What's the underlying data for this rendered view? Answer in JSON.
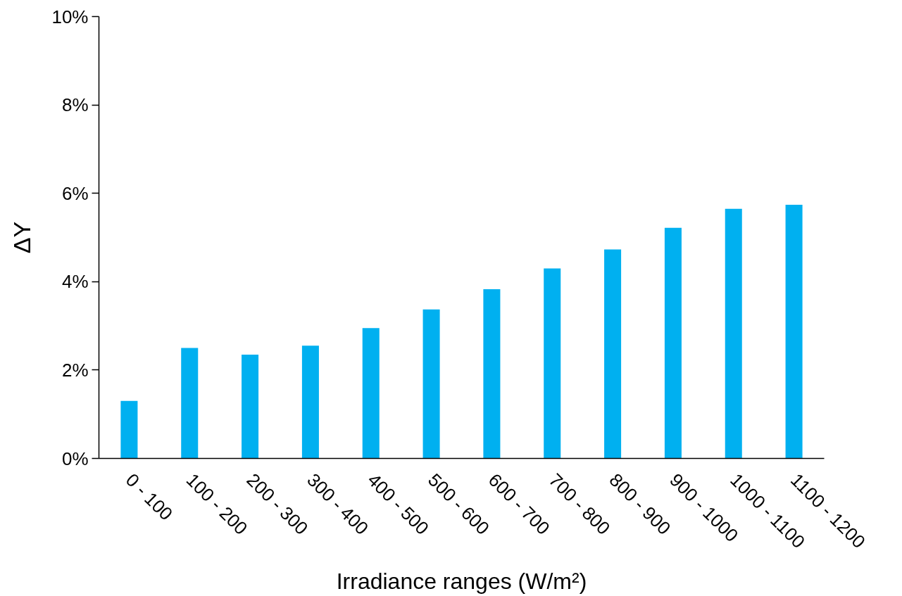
{
  "chart_data": {
    "type": "bar",
    "xlabel": "Irradiance ranges (W/m²)",
    "ylabel": "ΔY",
    "categories": [
      "0 - 100",
      "100 - 200",
      "200 - 300",
      "300 - 400",
      "400 - 500",
      "500 - 600",
      "600 - 700",
      "700 - 800",
      "800 - 900",
      "900 - 1000",
      "1000 - 1100",
      "1100 - 1200"
    ],
    "values": [
      1.3,
      2.5,
      2.35,
      2.55,
      2.95,
      3.37,
      3.83,
      4.3,
      4.73,
      5.22,
      5.65,
      5.74
    ],
    "color": "#00b0f0",
    "ylim": [
      0,
      10
    ],
    "yticks": [
      {
        "value": 0,
        "label": "0%"
      },
      {
        "value": 2,
        "label": "2%"
      },
      {
        "value": 4,
        "label": "4%"
      },
      {
        "value": 6,
        "label": "6%"
      },
      {
        "value": 8,
        "label": "8%"
      },
      {
        "value": 10,
        "label": "10%"
      }
    ],
    "grid": false
  }
}
